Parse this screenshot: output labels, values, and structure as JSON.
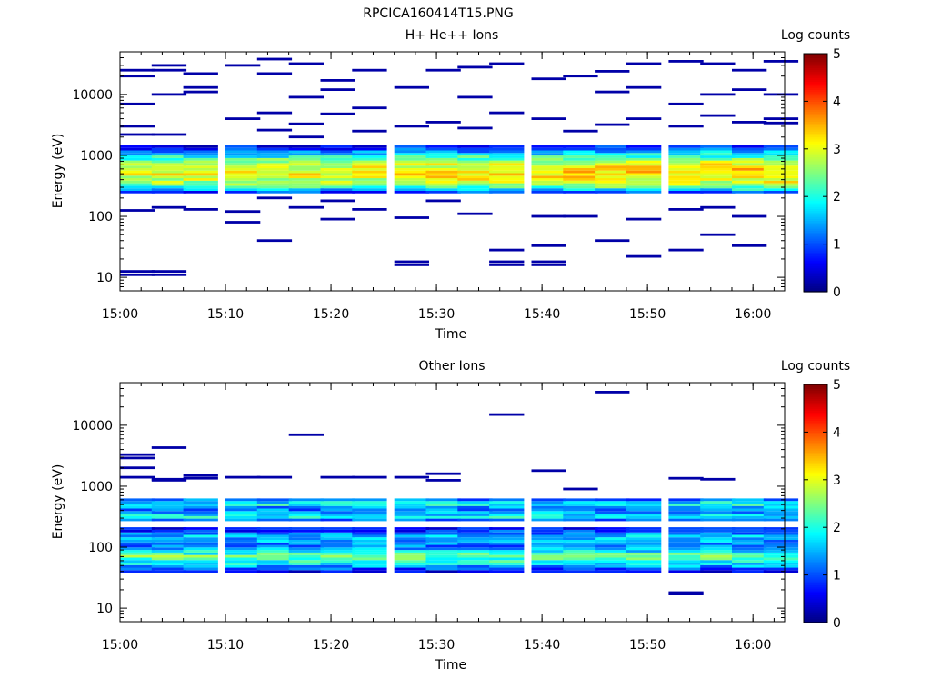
{
  "figure_title": "RPCICA160414T15.PNG",
  "chart_data": [
    {
      "type": "heatmap",
      "title": "H+ He++ Ions",
      "xlabel": "Time",
      "ylabel": "Energy (eV)",
      "x_ticks": [
        "15:00",
        "15:10",
        "15:20",
        "15:30",
        "15:40",
        "15:50",
        "16:00"
      ],
      "x_range": [
        "15:00",
        "16:03"
      ],
      "y_scale": "log",
      "y_ticks": [
        10,
        100,
        1000,
        10000
      ],
      "y_tick_labels": [
        "10",
        "100",
        "1000",
        "10000"
      ],
      "y_range": [
        6,
        50000
      ],
      "colorbar": {
        "label": "Log counts",
        "range": [
          0,
          5
        ],
        "ticks": [
          "0",
          "1",
          "2",
          "3",
          "4",
          "5"
        ],
        "colormap": "jet"
      },
      "time_bins": [
        "15:00",
        "15:03",
        "15:06",
        "15:10",
        "15:13",
        "15:16",
        "15:19",
        "15:22",
        "15:26",
        "15:29",
        "15:32",
        "15:35",
        "15:39",
        "15:42",
        "15:45",
        "15:48",
        "15:52",
        "15:55",
        "15:58",
        "16:01"
      ],
      "band": {
        "energy_range": [
          250,
          1500
        ],
        "levels": [
          0.8,
          2.0,
          2.5,
          2.8,
          3.0,
          3.0,
          2.8,
          2.5,
          2.0,
          1.4,
          0.8,
          0.4
        ]
      },
      "sparse_counts": [
        {
          "t": 0,
          "e": 25000,
          "v": 0.2
        },
        {
          "t": 0,
          "e": 20000,
          "v": 0.2
        },
        {
          "t": 0,
          "e": 7000,
          "v": 0.2
        },
        {
          "t": 0,
          "e": 3000,
          "v": 0.2
        },
        {
          "t": 0,
          "e": 2200,
          "v": 0.2
        },
        {
          "t": 0,
          "e": 125,
          "v": 0.2
        },
        {
          "t": 0,
          "e": 11,
          "v": 0.2
        },
        {
          "t": 0,
          "e": 12.5,
          "v": 0.2
        },
        {
          "t": 1,
          "e": 30000,
          "v": 0.2
        },
        {
          "t": 1,
          "e": 25000,
          "v": 0.2
        },
        {
          "t": 1,
          "e": 10000,
          "v": 0.2
        },
        {
          "t": 1,
          "e": 2200,
          "v": 0.2
        },
        {
          "t": 1,
          "e": 140,
          "v": 0.2
        },
        {
          "t": 1,
          "e": 11,
          "v": 0.2
        },
        {
          "t": 1,
          "e": 12.5,
          "v": 0.2
        },
        {
          "t": 2,
          "e": 22000,
          "v": 0.2
        },
        {
          "t": 2,
          "e": 13000,
          "v": 0.2
        },
        {
          "t": 2,
          "e": 11000,
          "v": 0.2
        },
        {
          "t": 2,
          "e": 130,
          "v": 0.2
        },
        {
          "t": 3,
          "e": 30000,
          "v": 0.2
        },
        {
          "t": 3,
          "e": 4000,
          "v": 0.2
        },
        {
          "t": 3,
          "e": 120,
          "v": 0.2
        },
        {
          "t": 3,
          "e": 80,
          "v": 0.2
        },
        {
          "t": 4,
          "e": 38000,
          "v": 0.2
        },
        {
          "t": 4,
          "e": 5000,
          "v": 0.2
        },
        {
          "t": 4,
          "e": 2600,
          "v": 0.2
        },
        {
          "t": 4,
          "e": 200,
          "v": 0.2
        },
        {
          "t": 4,
          "e": 40,
          "v": 0.2
        },
        {
          "t": 4,
          "e": 22000,
          "v": 0.2
        },
        {
          "t": 5,
          "e": 32000,
          "v": 0.2
        },
        {
          "t": 5,
          "e": 9000,
          "v": 0.2
        },
        {
          "t": 5,
          "e": 3300,
          "v": 0.2
        },
        {
          "t": 5,
          "e": 2000,
          "v": 0.2
        },
        {
          "t": 5,
          "e": 140,
          "v": 0.2
        },
        {
          "t": 6,
          "e": 17000,
          "v": 0.2
        },
        {
          "t": 6,
          "e": 12000,
          "v": 0.2
        },
        {
          "t": 6,
          "e": 4800,
          "v": 0.2
        },
        {
          "t": 6,
          "e": 180,
          "v": 0.2
        },
        {
          "t": 6,
          "e": 90,
          "v": 0.2
        },
        {
          "t": 7,
          "e": 25000,
          "v": 0.2
        },
        {
          "t": 7,
          "e": 6000,
          "v": 0.2
        },
        {
          "t": 7,
          "e": 2500,
          "v": 0.2
        },
        {
          "t": 7,
          "e": 130,
          "v": 0.2
        },
        {
          "t": 8,
          "e": 13000,
          "v": 0.2
        },
        {
          "t": 8,
          "e": 3000,
          "v": 0.2
        },
        {
          "t": 8,
          "e": 95,
          "v": 0.2
        },
        {
          "t": 8,
          "e": 16,
          "v": 0.2
        },
        {
          "t": 8,
          "e": 18,
          "v": 0.2
        },
        {
          "t": 9,
          "e": 25000,
          "v": 0.2
        },
        {
          "t": 9,
          "e": 3500,
          "v": 0.2
        },
        {
          "t": 9,
          "e": 180,
          "v": 0.2
        },
        {
          "t": 10,
          "e": 28000,
          "v": 0.2
        },
        {
          "t": 10,
          "e": 9000,
          "v": 0.2
        },
        {
          "t": 10,
          "e": 2800,
          "v": 0.2
        },
        {
          "t": 10,
          "e": 110,
          "v": 0.2
        },
        {
          "t": 11,
          "e": 32000,
          "v": 0.2
        },
        {
          "t": 11,
          "e": 5000,
          "v": 0.2
        },
        {
          "t": 11,
          "e": 16,
          "v": 0.2
        },
        {
          "t": 11,
          "e": 18,
          "v": 0.2
        },
        {
          "t": 11,
          "e": 28,
          "v": 0.2
        },
        {
          "t": 12,
          "e": 18000,
          "v": 0.2
        },
        {
          "t": 12,
          "e": 4000,
          "v": 0.2
        },
        {
          "t": 12,
          "e": 100,
          "v": 0.2
        },
        {
          "t": 12,
          "e": 16,
          "v": 0.2
        },
        {
          "t": 12,
          "e": 18,
          "v": 0.2
        },
        {
          "t": 12,
          "e": 33,
          "v": 0.2
        },
        {
          "t": 13,
          "e": 20000,
          "v": 0.2
        },
        {
          "t": 13,
          "e": 2500,
          "v": 0.2
        },
        {
          "t": 13,
          "e": 100,
          "v": 0.2
        },
        {
          "t": 14,
          "e": 24000,
          "v": 0.2
        },
        {
          "t": 14,
          "e": 11000,
          "v": 0.2
        },
        {
          "t": 14,
          "e": 3200,
          "v": 0.2
        },
        {
          "t": 14,
          "e": 40,
          "v": 0.2
        },
        {
          "t": 15,
          "e": 32000,
          "v": 0.2
        },
        {
          "t": 15,
          "e": 13000,
          "v": 0.2
        },
        {
          "t": 15,
          "e": 4000,
          "v": 0.2
        },
        {
          "t": 15,
          "e": 90,
          "v": 0.2
        },
        {
          "t": 15,
          "e": 22,
          "v": 0.2
        },
        {
          "t": 16,
          "e": 35000,
          "v": 0.2
        },
        {
          "t": 16,
          "e": 7000,
          "v": 0.2
        },
        {
          "t": 16,
          "e": 3000,
          "v": 0.2
        },
        {
          "t": 16,
          "e": 130,
          "v": 0.2
        },
        {
          "t": 16,
          "e": 28,
          "v": 0.2
        },
        {
          "t": 17,
          "e": 32000,
          "v": 0.2
        },
        {
          "t": 17,
          "e": 10000,
          "v": 0.2
        },
        {
          "t": 17,
          "e": 4500,
          "v": 0.2
        },
        {
          "t": 17,
          "e": 140,
          "v": 0.2
        },
        {
          "t": 17,
          "e": 50,
          "v": 0.2
        },
        {
          "t": 18,
          "e": 25000,
          "v": 0.2
        },
        {
          "t": 18,
          "e": 12000,
          "v": 0.2
        },
        {
          "t": 18,
          "e": 3500,
          "v": 0.2
        },
        {
          "t": 18,
          "e": 100,
          "v": 0.2
        },
        {
          "t": 18,
          "e": 33,
          "v": 0.2
        },
        {
          "t": 19,
          "e": 35000,
          "v": 0.2
        },
        {
          "t": 19,
          "e": 10000,
          "v": 0.2
        },
        {
          "t": 19,
          "e": 4000,
          "v": 0.2
        },
        {
          "t": 19,
          "e": 3400,
          "v": 0.2
        }
      ]
    },
    {
      "type": "heatmap",
      "title": "Other Ions",
      "xlabel": "Time",
      "ylabel": "Energy (eV)",
      "x_ticks": [
        "15:00",
        "15:10",
        "15:20",
        "15:30",
        "15:40",
        "15:50",
        "16:00"
      ],
      "x_range": [
        "15:00",
        "16:03"
      ],
      "y_scale": "log",
      "y_ticks": [
        10,
        100,
        1000,
        10000
      ],
      "y_tick_labels": [
        "10",
        "100",
        "1000",
        "10000"
      ],
      "y_range": [
        6,
        50000
      ],
      "colorbar": {
        "label": "Log counts",
        "range": [
          0,
          5
        ],
        "ticks": [
          "0",
          "1",
          "2",
          "3",
          "4",
          "5"
        ],
        "colormap": "jet"
      },
      "time_bins": [
        "15:00",
        "15:03",
        "15:06",
        "15:10",
        "15:13",
        "15:16",
        "15:19",
        "15:22",
        "15:26",
        "15:29",
        "15:32",
        "15:35",
        "15:39",
        "15:42",
        "15:45",
        "15:48",
        "15:52",
        "15:55",
        "15:58",
        "16:01"
      ],
      "bands": [
        {
          "energy_range": [
            280,
            650
          ],
          "levels": [
            1.2,
            2.0,
            1.6,
            1.2,
            1.4,
            2.2,
            1.4,
            0.8
          ]
        },
        {
          "energy_range": [
            40,
            220
          ],
          "levels": [
            0.6,
            1.4,
            2.0,
            2.4,
            1.8,
            1.2,
            1.4,
            1.6,
            0.9,
            0.6
          ]
        }
      ],
      "sparse_counts": [
        {
          "t": 0,
          "e": 3300,
          "v": 0.2
        },
        {
          "t": 0,
          "e": 2900,
          "v": 0.2
        },
        {
          "t": 0,
          "e": 2000,
          "v": 0.2
        },
        {
          "t": 0,
          "e": 1400,
          "v": 0.2
        },
        {
          "t": 1,
          "e": 4300,
          "v": 0.2
        },
        {
          "t": 1,
          "e": 1300,
          "v": 0.2
        },
        {
          "t": 1,
          "e": 1250,
          "v": 0.2
        },
        {
          "t": 2,
          "e": 1500,
          "v": 0.2
        },
        {
          "t": 2,
          "e": 1350,
          "v": 0.2
        },
        {
          "t": 3,
          "e": 1400,
          "v": 0.2
        },
        {
          "t": 4,
          "e": 1400,
          "v": 0.2
        },
        {
          "t": 5,
          "e": 7000,
          "v": 0.2
        },
        {
          "t": 6,
          "e": 1400,
          "v": 0.2
        },
        {
          "t": 7,
          "e": 1400,
          "v": 0.2
        },
        {
          "t": 8,
          "e": 1400,
          "v": 0.2
        },
        {
          "t": 9,
          "e": 1600,
          "v": 0.2
        },
        {
          "t": 9,
          "e": 1250,
          "v": 0.2
        },
        {
          "t": 11,
          "e": 15000,
          "v": 0.2
        },
        {
          "t": 12,
          "e": 1800,
          "v": 0.2
        },
        {
          "t": 13,
          "e": 900,
          "v": 0.2
        },
        {
          "t": 14,
          "e": 35000,
          "v": 0.2
        },
        {
          "t": 16,
          "e": 1350,
          "v": 0.2
        },
        {
          "t": 16,
          "e": 17,
          "v": 0.2
        },
        {
          "t": 16,
          "e": 18,
          "v": 0.2
        },
        {
          "t": 17,
          "e": 1300,
          "v": 0.2
        }
      ]
    }
  ]
}
